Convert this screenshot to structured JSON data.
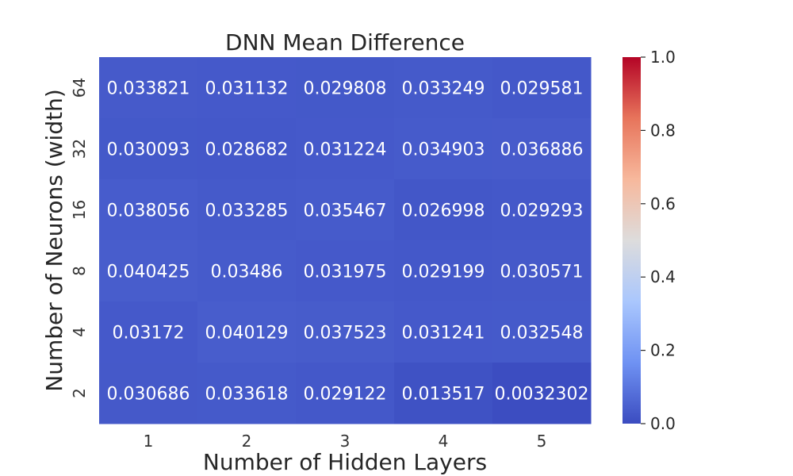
{
  "chart_data": {
    "type": "heatmap",
    "title": "DNN Mean Difference",
    "xlabel": "Number of Hidden Layers",
    "ylabel": "Number of Neurons (width)",
    "x_categories": [
      "1",
      "2",
      "3",
      "4",
      "5"
    ],
    "y_categories": [
      "64",
      "32",
      "16",
      "8",
      "4",
      "2"
    ],
    "values": [
      [
        0.033821,
        0.031132,
        0.029808,
        0.033249,
        0.029581
      ],
      [
        0.030093,
        0.028682,
        0.031224,
        0.034903,
        0.036886
      ],
      [
        0.038056,
        0.033285,
        0.035467,
        0.026998,
        0.029293
      ],
      [
        0.040425,
        0.03486,
        0.031975,
        0.029199,
        0.030571
      ],
      [
        0.03172,
        0.040129,
        0.037523,
        0.031241,
        0.032548
      ],
      [
        0.030686,
        0.033618,
        0.029122,
        0.013517,
        0.0032302
      ]
    ],
    "value_labels": [
      [
        "0.033821",
        "0.031132",
        "0.029808",
        "0.033249",
        "0.029581"
      ],
      [
        "0.030093",
        "0.028682",
        "0.031224",
        "0.034903",
        "0.036886"
      ],
      [
        "0.038056",
        "0.033285",
        "0.035467",
        "0.026998",
        "0.029293"
      ],
      [
        "0.040425",
        "0.03486",
        "0.031975",
        "0.029199",
        "0.030571"
      ],
      [
        "0.03172",
        "0.040129",
        "0.037523",
        "0.031241",
        "0.032548"
      ],
      [
        "0.030686",
        "0.033618",
        "0.029122",
        "0.013517",
        "0.0032302"
      ]
    ],
    "colormap": "coolwarm",
    "colorbar": {
      "range": [
        0.0,
        1.0
      ],
      "ticks": [
        "0.0",
        "0.2",
        "0.4",
        "0.6",
        "0.8",
        "1.0"
      ],
      "colors": [
        "#3b4cc0",
        "#6f92f3",
        "#aac7fd",
        "#dddcdc",
        "#f7b89c",
        "#e7745b",
        "#b40426"
      ]
    },
    "grid": false
  }
}
